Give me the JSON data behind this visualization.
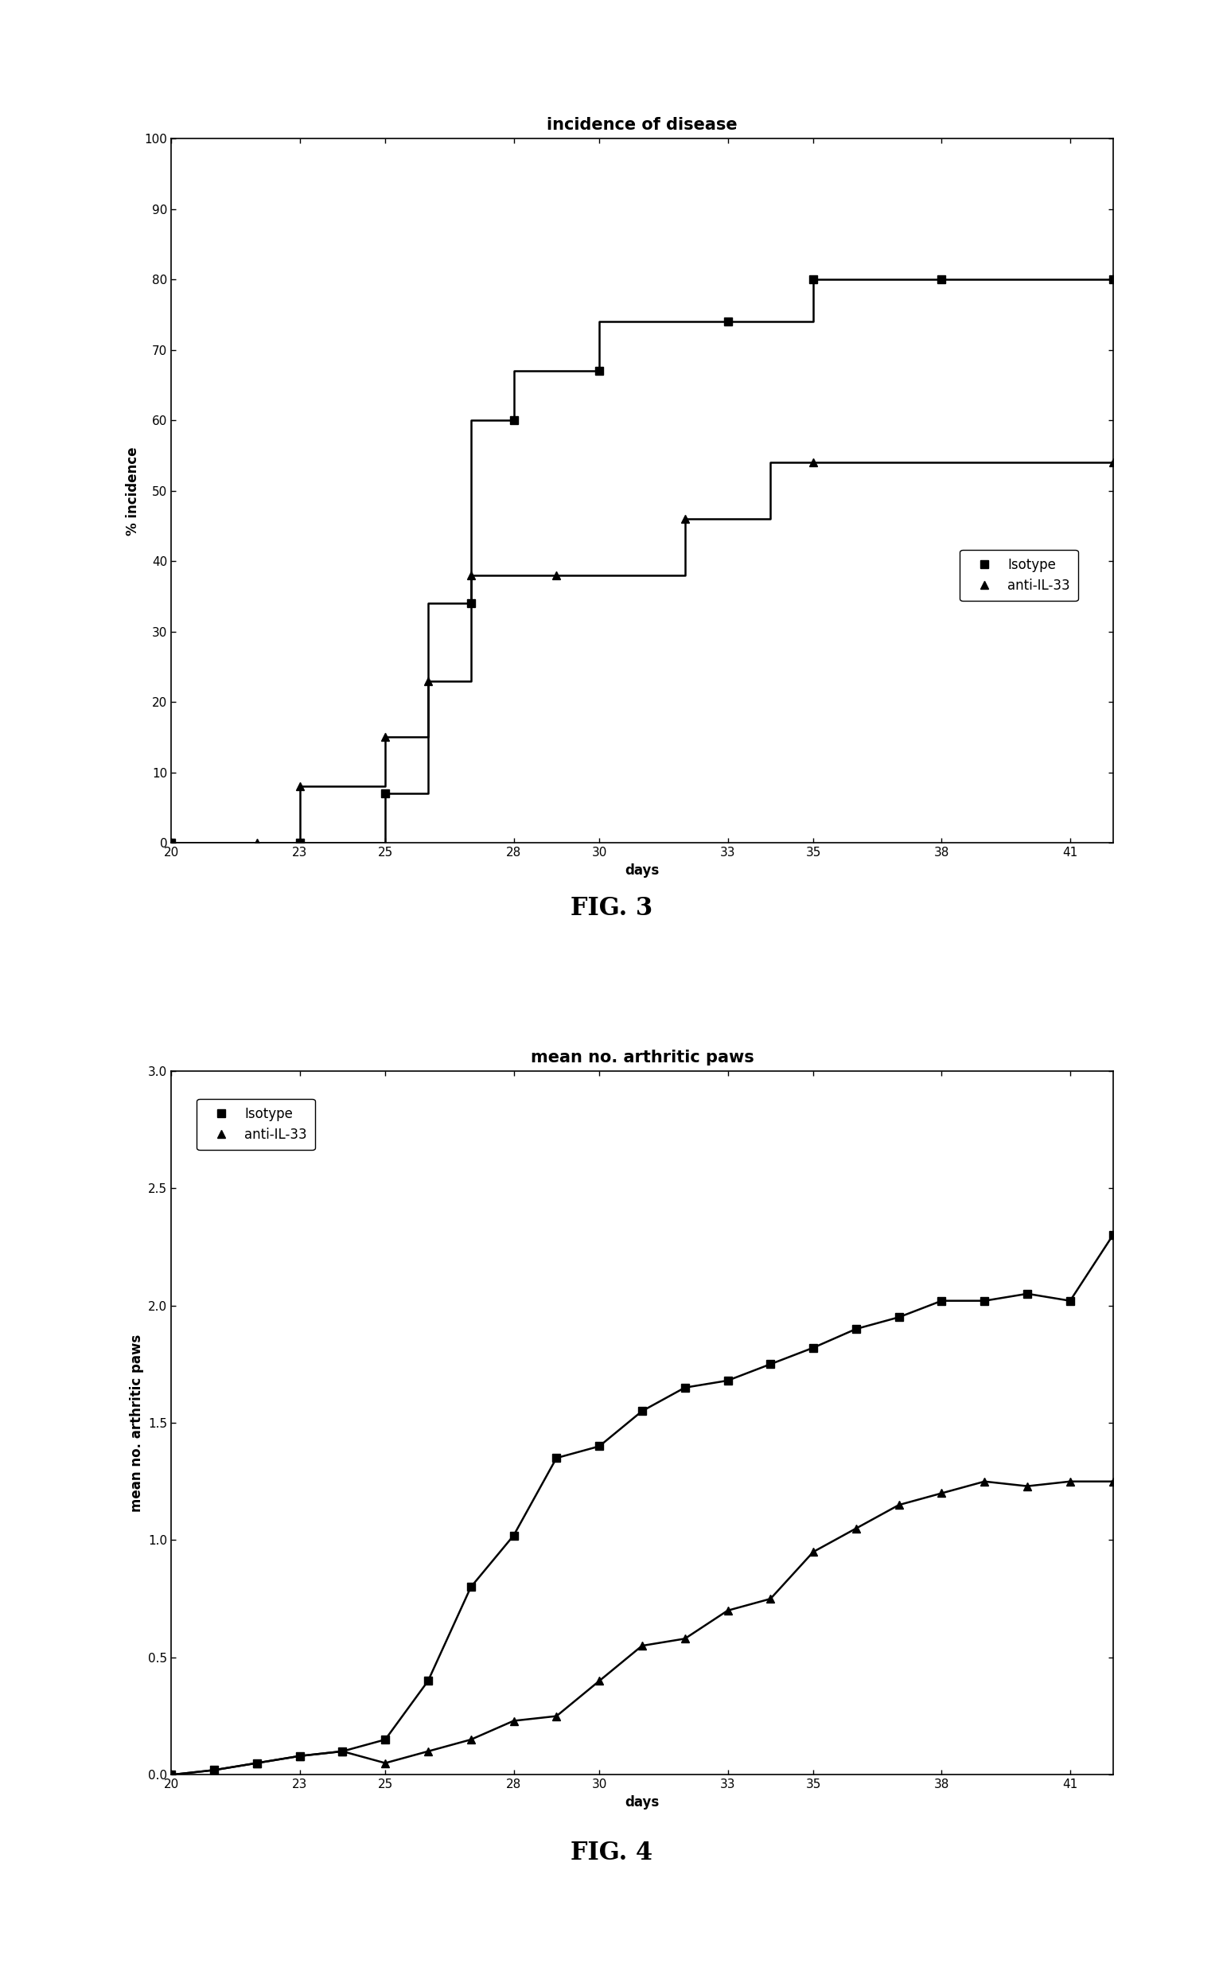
{
  "fig3": {
    "title": "incidence of disease",
    "xlabel": "days",
    "ylabel": "% incidence",
    "xlim": [
      20,
      42
    ],
    "ylim": [
      0,
      100
    ],
    "xticks": [
      20,
      23,
      25,
      28,
      30,
      33,
      35,
      38,
      41
    ],
    "yticks": [
      0,
      10,
      20,
      30,
      40,
      50,
      60,
      70,
      80,
      90,
      100
    ],
    "isotype_x": [
      20,
      23,
      24,
      25,
      25,
      26,
      26,
      27,
      27,
      28,
      28,
      29,
      30,
      30,
      33,
      33,
      35,
      35,
      37,
      37,
      38,
      38,
      42
    ],
    "isotype_y": [
      0,
      0,
      0,
      0,
      7,
      7,
      34,
      34,
      60,
      60,
      67,
      67,
      67,
      74,
      74,
      74,
      74,
      80,
      80,
      80,
      80,
      80,
      80
    ],
    "anti_x": [
      20,
      22,
      23,
      23,
      25,
      25,
      26,
      26,
      27,
      27,
      28,
      29,
      32,
      32,
      34,
      34,
      35,
      35,
      42
    ],
    "anti_y": [
      0,
      0,
      0,
      8,
      8,
      15,
      15,
      23,
      23,
      38,
      38,
      38,
      38,
      46,
      46,
      54,
      54,
      54,
      54
    ],
    "isotype_marker_x": [
      20,
      23,
      25,
      27,
      28,
      30,
      33,
      35,
      38,
      42
    ],
    "isotype_marker_y": [
      0,
      0,
      7,
      34,
      60,
      67,
      74,
      80,
      80,
      80
    ],
    "anti_marker_x": [
      20,
      22,
      23,
      25,
      26,
      27,
      29,
      32,
      35,
      42
    ],
    "anti_marker_y": [
      0,
      0,
      8,
      15,
      23,
      38,
      38,
      46,
      54,
      54
    ],
    "legend_isotype": "Isotype",
    "legend_anti": "anti-IL-33"
  },
  "fig4": {
    "title": "mean no. arthritic paws",
    "xlabel": "days",
    "ylabel": "mean no. arthritic paws",
    "xlim": [
      20,
      42
    ],
    "ylim": [
      0.0,
      3.0
    ],
    "xticks": [
      20,
      23,
      25,
      28,
      30,
      33,
      35,
      38,
      41
    ],
    "yticks": [
      0.0,
      0.5,
      1.0,
      1.5,
      2.0,
      2.5,
      3.0
    ],
    "isotype_x": [
      20,
      21,
      22,
      23,
      24,
      25,
      26,
      27,
      28,
      29,
      30,
      31,
      32,
      33,
      34,
      35,
      36,
      37,
      38,
      39,
      40,
      41,
      42
    ],
    "isotype_y": [
      0.0,
      0.02,
      0.05,
      0.08,
      0.1,
      0.15,
      0.4,
      0.8,
      1.02,
      1.35,
      1.4,
      1.55,
      1.65,
      1.68,
      1.75,
      1.82,
      1.9,
      1.95,
      2.02,
      2.02,
      2.05,
      2.02,
      2.3
    ],
    "anti_x": [
      20,
      21,
      22,
      23,
      24,
      25,
      26,
      27,
      28,
      29,
      30,
      31,
      32,
      33,
      34,
      35,
      36,
      37,
      38,
      39,
      40,
      41,
      42
    ],
    "anti_y": [
      0.0,
      0.02,
      0.05,
      0.08,
      0.1,
      0.05,
      0.1,
      0.15,
      0.23,
      0.25,
      0.4,
      0.55,
      0.58,
      0.7,
      0.75,
      0.95,
      1.05,
      1.15,
      1.2,
      1.25,
      1.23,
      1.25,
      1.25
    ],
    "legend_isotype": "Isotype",
    "legend_anti": "anti-IL-33"
  },
  "line_color": "#000000",
  "bg_color": "#ffffff",
  "fig3_label": "FIG. 3",
  "fig4_label": "FIG. 4",
  "title_fontsize": 15,
  "axis_fontsize": 12,
  "tick_fontsize": 11,
  "legend_fontsize": 12,
  "figlabel_fontsize": 22,
  "marker_size": 7,
  "line_width": 1.8
}
